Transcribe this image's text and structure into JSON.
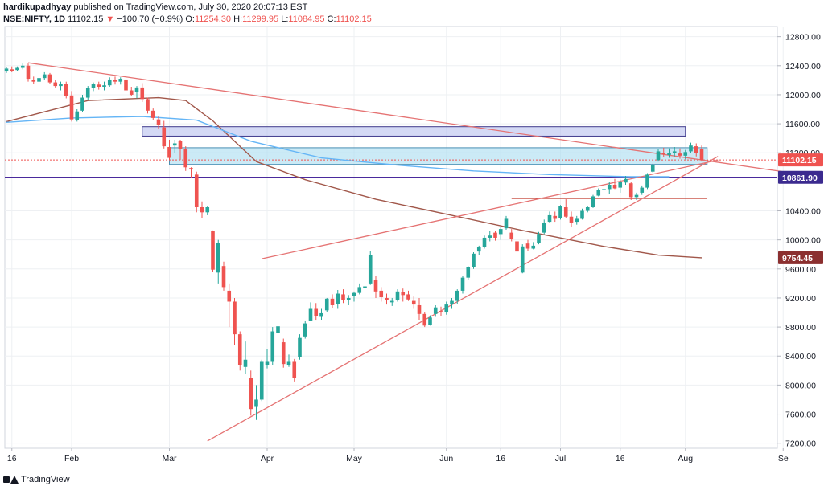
{
  "header": {
    "user": "hardikupadhyay",
    "published": " published on TradingView.com, July 30, 2020 20:07:13 EST",
    "symbol": "NSE:NIFTY, 1D",
    "last": " 11102.15 ",
    "arrow": "▼",
    "change": " −100.70 (−0.9%)",
    "open_label": " O:",
    "open": "11254.30",
    "high_label": " H:",
    "high": "11299.95",
    "low_label": " L:",
    "low": "11084.95",
    "close_label": " C:",
    "close": "11102.15"
  },
  "footer": {
    "brand": "TradingView"
  },
  "colors": {
    "up": "#26a69a",
    "down": "#ef5350",
    "ma_long": "#a1574a",
    "ma_mid": "#64b5f6",
    "trendline": "#e57373",
    "support_line": "#4a2a9c",
    "zone_purple": "#b7c0ef",
    "zone_cyan": "#a9dcf0"
  },
  "chart_data": {
    "type": "candlestick",
    "symbol": "NSE:NIFTY",
    "interval": "1D",
    "ylim": [
      7130,
      12940
    ],
    "yticks": [
      12800,
      12400,
      12000,
      11600,
      11200,
      10400,
      10000,
      9600,
      9200,
      8800,
      8400,
      8000,
      7600,
      7200
    ],
    "xticks": [
      {
        "label": "16",
        "i": 1
      },
      {
        "label": "Feb",
        "i": 12
      },
      {
        "label": "Mar",
        "i": 30
      },
      {
        "label": "Apr",
        "i": 48
      },
      {
        "label": "May",
        "i": 64
      },
      {
        "label": "Jun",
        "i": 81
      },
      {
        "label": "16",
        "i": 91
      },
      {
        "label": "Jul",
        "i": 102
      },
      {
        "label": "16",
        "i": 113
      },
      {
        "label": "Aug",
        "i": 125
      },
      {
        "label": "Se",
        "i": 143
      }
    ],
    "price_labels": [
      {
        "value": 11102.15,
        "color": "#ef5350"
      },
      {
        "value": 10861.9,
        "color": "#3b2a8f"
      },
      {
        "value": 9754.45,
        "color": "#8b2f2f"
      }
    ],
    "candles": [
      [
        12320,
        12380,
        12300,
        12360
      ],
      [
        12350,
        12390,
        12310,
        12330
      ],
      [
        12340,
        12390,
        12320,
        12370
      ],
      [
        12370,
        12430,
        12350,
        12400
      ],
      [
        12400,
        12430,
        12180,
        12220
      ],
      [
        12200,
        12250,
        12150,
        12180
      ],
      [
        12180,
        12250,
        12150,
        12230
      ],
      [
        12230,
        12310,
        12200,
        12280
      ],
      [
        12280,
        12300,
        12150,
        12170
      ],
      [
        12170,
        12200,
        12100,
        12120
      ],
      [
        12120,
        12180,
        12060,
        12150
      ],
      [
        12150,
        12180,
        11950,
        11980
      ],
      [
        11990,
        12050,
        11630,
        11660
      ],
      [
        11650,
        11800,
        11630,
        11770
      ],
      [
        11780,
        12000,
        11760,
        11960
      ],
      [
        11960,
        12120,
        11930,
        12090
      ],
      [
        12090,
        12170,
        12050,
        12150
      ],
      [
        12140,
        12180,
        12070,
        12110
      ],
      [
        12110,
        12180,
        12060,
        12130
      ],
      [
        12130,
        12240,
        12110,
        12210
      ],
      [
        12200,
        12250,
        12140,
        12180
      ],
      [
        12180,
        12240,
        12140,
        12220
      ],
      [
        12210,
        12230,
        12040,
        12060
      ],
      [
        12060,
        12110,
        11980,
        12000
      ],
      [
        12040,
        12120,
        11950,
        12100
      ],
      [
        12100,
        12160,
        11900,
        11940
      ],
      [
        11940,
        11960,
        11740,
        11780
      ],
      [
        11780,
        11810,
        11650,
        11680
      ],
      [
        11660,
        11700,
        11530,
        11580
      ],
      [
        11550,
        11640,
        11260,
        11290
      ],
      [
        11280,
        11380,
        11100,
        11130
      ],
      [
        11300,
        11380,
        11200,
        11330
      ],
      [
        11360,
        11380,
        11100,
        11250
      ],
      [
        11250,
        11290,
        10950,
        11000
      ],
      [
        10990,
        11000,
        10860,
        10970
      ],
      [
        10900,
        10940,
        10380,
        10450
      ],
      [
        10450,
        10530,
        10300,
        10380
      ],
      [
        10380,
        10460,
        10340,
        10450
      ],
      [
        10120,
        10130,
        9560,
        9590
      ],
      [
        9550,
        10000,
        9400,
        9960
      ],
      [
        9640,
        9700,
        9300,
        9350
      ],
      [
        9300,
        9400,
        8800,
        9150
      ],
      [
        9150,
        9200,
        8550,
        8700
      ],
      [
        8700,
        8740,
        8200,
        8280
      ],
      [
        8250,
        8600,
        8150,
        8350
      ],
      [
        8100,
        8200,
        7580,
        7670
      ],
      [
        7700,
        8000,
        7520,
        7800
      ],
      [
        7800,
        8350,
        7780,
        8320
      ],
      [
        8270,
        8500,
        8230,
        8320
      ],
      [
        8320,
        8800,
        8280,
        8740
      ],
      [
        8720,
        8910,
        8600,
        8810
      ],
      [
        8590,
        8640,
        8240,
        8290
      ],
      [
        8280,
        8420,
        8250,
        8320
      ],
      [
        8320,
        8360,
        8050,
        8100
      ],
      [
        8390,
        8700,
        8350,
        8650
      ],
      [
        8670,
        8890,
        8640,
        8850
      ],
      [
        8890,
        9140,
        8880,
        9050
      ],
      [
        9050,
        9130,
        8900,
        8950
      ],
      [
        8940,
        9050,
        8900,
        8990
      ],
      [
        9030,
        9200,
        9000,
        9190
      ],
      [
        9190,
        9250,
        9060,
        9100
      ],
      [
        9120,
        9310,
        9050,
        9260
      ],
      [
        9250,
        9320,
        9130,
        9170
      ],
      [
        9170,
        9240,
        9100,
        9200
      ],
      [
        9230,
        9290,
        9150,
        9270
      ],
      [
        9270,
        9400,
        9250,
        9350
      ],
      [
        9340,
        9400,
        9230,
        9360
      ],
      [
        9400,
        9850,
        9380,
        9790
      ],
      [
        9450,
        9500,
        9200,
        9290
      ],
      [
        9300,
        9350,
        9150,
        9210
      ],
      [
        9200,
        9260,
        9110,
        9170
      ],
      [
        9140,
        9200,
        9090,
        9160
      ],
      [
        9170,
        9320,
        9150,
        9290
      ],
      [
        9280,
        9330,
        9150,
        9240
      ],
      [
        9250,
        9300,
        9160,
        9180
      ],
      [
        9160,
        9220,
        9050,
        9110
      ],
      [
        9100,
        9200,
        8900,
        8980
      ],
      [
        8980,
        9000,
        8800,
        8820
      ],
      [
        8830,
        8960,
        8820,
        8930
      ],
      [
        8980,
        9100,
        8940,
        9070
      ],
      [
        9020,
        9080,
        8950,
        9000
      ],
      [
        9000,
        9150,
        8970,
        9110
      ],
      [
        9120,
        9200,
        9050,
        9160
      ],
      [
        9160,
        9320,
        9120,
        9300
      ],
      [
        9300,
        9500,
        9260,
        9480
      ],
      [
        9480,
        9640,
        9450,
        9620
      ],
      [
        9620,
        9830,
        9600,
        9810
      ],
      [
        9840,
        9920,
        9790,
        9900
      ],
      [
        9900,
        10060,
        9880,
        10030
      ],
      [
        10030,
        10120,
        9980,
        10060
      ],
      [
        10100,
        10120,
        9990,
        10030
      ],
      [
        10080,
        10180,
        10000,
        10150
      ],
      [
        10160,
        10330,
        10140,
        10290
      ],
      [
        10100,
        10150,
        9980,
        10010
      ],
      [
        9980,
        10050,
        9780,
        9840
      ],
      [
        9550,
        9940,
        9540,
        9910
      ],
      [
        9950,
        10000,
        9850,
        9880
      ],
      [
        9880,
        9970,
        9870,
        9920
      ],
      [
        9960,
        10110,
        9940,
        10080
      ],
      [
        10100,
        10280,
        10080,
        10240
      ],
      [
        10250,
        10390,
        10230,
        10340
      ],
      [
        10330,
        10390,
        10250,
        10290
      ],
      [
        10300,
        10480,
        10280,
        10470
      ],
      [
        10450,
        10560,
        10300,
        10320
      ],
      [
        10320,
        10390,
        10180,
        10240
      ],
      [
        10250,
        10330,
        10210,
        10290
      ],
      [
        10290,
        10430,
        10280,
        10400
      ],
      [
        10400,
        10460,
        10380,
        10450
      ],
      [
        10450,
        10620,
        10440,
        10600
      ],
      [
        10610,
        10710,
        10600,
        10690
      ],
      [
        10690,
        10760,
        10620,
        10700
      ],
      [
        10700,
        10800,
        10630,
        10760
      ],
      [
        10760,
        10840,
        10700,
        10710
      ],
      [
        10720,
        10830,
        10650,
        10800
      ],
      [
        10790,
        10880,
        10760,
        10840
      ],
      [
        10780,
        10800,
        10550,
        10590
      ],
      [
        10590,
        10650,
        10550,
        10620
      ],
      [
        10650,
        10750,
        10620,
        10720
      ],
      [
        10720,
        10920,
        10700,
        10900
      ],
      [
        10940,
        11050,
        10930,
        11030
      ],
      [
        11100,
        11250,
        11080,
        11220
      ],
      [
        11200,
        11270,
        11140,
        11180
      ],
      [
        11170,
        11260,
        11130,
        11200
      ],
      [
        11200,
        11280,
        11150,
        11220
      ],
      [
        11190,
        11260,
        11120,
        11160
      ],
      [
        11160,
        11240,
        11110,
        11210
      ],
      [
        11220,
        11340,
        11200,
        11300
      ],
      [
        11290,
        11330,
        11150,
        11200
      ],
      [
        11250,
        11300,
        11080,
        11102.15
      ]
    ],
    "moving_average_long": [
      [
        0,
        11630
      ],
      [
        15,
        11920
      ],
      [
        28,
        11960
      ],
      [
        33,
        11920
      ],
      [
        38,
        11640
      ],
      [
        46,
        11080
      ],
      [
        55,
        10830
      ],
      [
        68,
        10560
      ],
      [
        80,
        10370
      ],
      [
        95,
        10130
      ],
      [
        110,
        9910
      ],
      [
        120,
        9790
      ],
      [
        128,
        9754.45
      ]
    ],
    "moving_average_mid": [
      [
        0,
        11620
      ],
      [
        12,
        11680
      ],
      [
        25,
        11700
      ],
      [
        35,
        11650
      ],
      [
        45,
        11360
      ],
      [
        58,
        11130
      ],
      [
        72,
        11030
      ],
      [
        86,
        10950
      ],
      [
        100,
        10900
      ],
      [
        115,
        10870
      ],
      [
        122,
        10870
      ]
    ],
    "trendlines": [
      {
        "from": [
          4,
          12440
        ],
        "to": [
          143,
          10940
        ]
      },
      {
        "from": [
          37,
          7230
        ],
        "to": [
          131,
          11150
        ]
      },
      {
        "from": [
          47,
          9740
        ],
        "to": [
          131,
          11100
        ]
      }
    ],
    "zones": [
      {
        "i0": 25,
        "i1": 125,
        "y0": 11430,
        "y1": 11560,
        "color": "zone_purple"
      },
      {
        "i0": 30,
        "i1": 129,
        "y0": 11040,
        "y1": 11270,
        "color": "zone_cyan"
      }
    ],
    "horizontal_segments": [
      {
        "i0": 25,
        "i1": 120,
        "y": 10300
      },
      {
        "i0": 93,
        "i1": 129,
        "y": 10570
      }
    ],
    "support_line": 10861.9,
    "last_price_line": 11102.15
  }
}
